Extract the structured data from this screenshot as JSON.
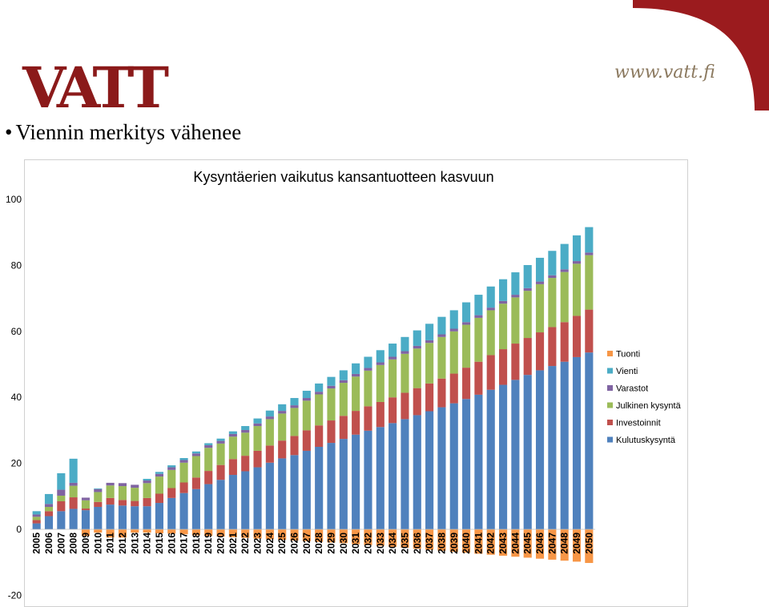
{
  "logo": {
    "text": "VATT"
  },
  "website": "www.vatt.fi",
  "slide_title": "Viennin merkitys vähenee",
  "colors": {
    "Kulutuskysyntä": "#4F81BD",
    "Investoinnit": "#C0504D",
    "Julkinen kysyntä": "#9BBB59",
    "Varastot": "#8064A2",
    "Vienti": "#4BACC6",
    "Tuonti": "#F79646",
    "brand": "#9B1B1E"
  },
  "chart_data": {
    "type": "bar",
    "stacked": true,
    "title": "Kysyntäerien vaikutus kansantuotteen kasvuun",
    "xlabel": "",
    "ylabel": "",
    "ylim": [
      -20,
      100
    ],
    "yticks": [
      -20,
      0,
      20,
      40,
      60,
      80,
      100
    ],
    "legend_position": "right",
    "legend": [
      "Tuonti",
      "Vienti",
      "Varastot",
      "Julkinen kysyntä",
      "Investoinnit",
      "Kulutuskysyntä"
    ],
    "categories": [
      "2005",
      "2006",
      "2007",
      "2008",
      "2009",
      "2010",
      "2011",
      "2012",
      "2013",
      "2014",
      "2015",
      "2016",
      "2017",
      "2018",
      "2019",
      "2020",
      "2021",
      "2022",
      "2023",
      "2024",
      "2025",
      "2026",
      "2027",
      "2028",
      "2029",
      "2030",
      "2031",
      "2032",
      "2033",
      "2034",
      "2035",
      "2036",
      "2037",
      "2038",
      "2039",
      "2040",
      "2041",
      "2042",
      "2043",
      "2044",
      "2045",
      "2046",
      "2047",
      "2048",
      "2049",
      "2050"
    ],
    "series": [
      {
        "name": "Kulutuskysyntä",
        "values": [
          1.8,
          4.0,
          5.5,
          6.2,
          5.8,
          6.8,
          7.5,
          7.2,
          7.0,
          7.0,
          8.0,
          9.5,
          11.0,
          12.2,
          13.7,
          15.0,
          16.5,
          17.6,
          18.8,
          20.2,
          21.5,
          22.5,
          23.8,
          25.0,
          26.2,
          27.4,
          28.7,
          29.9,
          31.0,
          32.2,
          33.4,
          34.6,
          35.8,
          37.0,
          38.2,
          39.5,
          40.8,
          42.3,
          43.8,
          45.3,
          46.8,
          48.2,
          49.5,
          50.8,
          52.2,
          53.6
        ]
      },
      {
        "name": "Investoinnit",
        "values": [
          1.0,
          1.5,
          3.0,
          3.5,
          0.5,
          1.5,
          2.0,
          1.7,
          1.6,
          2.5,
          2.8,
          3.0,
          3.2,
          3.5,
          4.0,
          4.5,
          4.8,
          4.7,
          5.0,
          5.2,
          5.4,
          5.8,
          6.2,
          6.5,
          6.8,
          7.0,
          7.2,
          7.4,
          7.6,
          7.8,
          8.0,
          8.2,
          8.4,
          8.7,
          9.0,
          9.5,
          10.0,
          10.5,
          10.8,
          11.0,
          11.2,
          11.5,
          11.8,
          12.0,
          12.5,
          13.0
        ]
      },
      {
        "name": "Julkinen kysyntä",
        "values": [
          1.0,
          1.3,
          1.7,
          3.5,
          2.5,
          3.0,
          3.8,
          4.2,
          4.0,
          4.5,
          5.2,
          5.5,
          6.0,
          6.5,
          7.0,
          6.5,
          6.8,
          7.0,
          7.5,
          8.0,
          8.2,
          8.5,
          9.0,
          9.4,
          9.7,
          10.0,
          10.4,
          10.8,
          11.2,
          11.5,
          11.8,
          12.0,
          12.3,
          12.6,
          12.8,
          13.0,
          13.3,
          13.6,
          13.8,
          14.0,
          14.3,
          14.6,
          14.9,
          15.2,
          15.8,
          16.5
        ]
      },
      {
        "name": "Varastot",
        "values": [
          0.7,
          0.9,
          1.8,
          0.9,
          0.8,
          0.9,
          0.8,
          0.9,
          0.9,
          0.8,
          0.8,
          0.8,
          0.8,
          0.8,
          0.8,
          0.8,
          0.8,
          0.8,
          0.8,
          0.8,
          0.8,
          0.8,
          0.8,
          0.8,
          0.8,
          0.8,
          0.8,
          0.8,
          0.8,
          0.8,
          0.8,
          0.8,
          0.8,
          0.8,
          0.8,
          0.8,
          0.8,
          0.8,
          0.8,
          0.8,
          0.8,
          0.8,
          0.8,
          0.8,
          0.8,
          0.8
        ]
      },
      {
        "name": "Vienti",
        "values": [
          1.0,
          3.0,
          5.0,
          7.3,
          0.0,
          0.2,
          0.0,
          0.0,
          0.0,
          0.5,
          0.6,
          0.6,
          0.6,
          0.6,
          0.6,
          0.7,
          0.8,
          1.2,
          1.5,
          1.8,
          2.0,
          2.2,
          2.2,
          2.5,
          2.7,
          3.0,
          3.2,
          3.4,
          3.7,
          4.0,
          4.3,
          4.7,
          5.0,
          5.3,
          5.6,
          6.0,
          6.2,
          6.4,
          6.6,
          6.8,
          7.0,
          7.2,
          7.4,
          7.7,
          7.8,
          7.7
        ]
      },
      {
        "name": "Tuonti",
        "values": [
          0,
          0,
          0,
          0,
          -2.0,
          -1.0,
          -2.5,
          -2.5,
          -1.0,
          -1.0,
          -1.2,
          -1.3,
          -1.5,
          -1.8,
          -2.0,
          -2.2,
          -2.4,
          -2.6,
          -2.8,
          -3.0,
          -3.2,
          -3.4,
          -3.6,
          -3.8,
          -4.0,
          -4.2,
          -4.5,
          -4.8,
          -5.0,
          -5.3,
          -5.6,
          -5.9,
          -6.2,
          -6.5,
          -6.8,
          -7.1,
          -7.4,
          -7.7,
          -8.0,
          -8.3,
          -8.6,
          -8.9,
          -9.2,
          -9.5,
          -9.8,
          -10.2
        ]
      }
    ]
  }
}
